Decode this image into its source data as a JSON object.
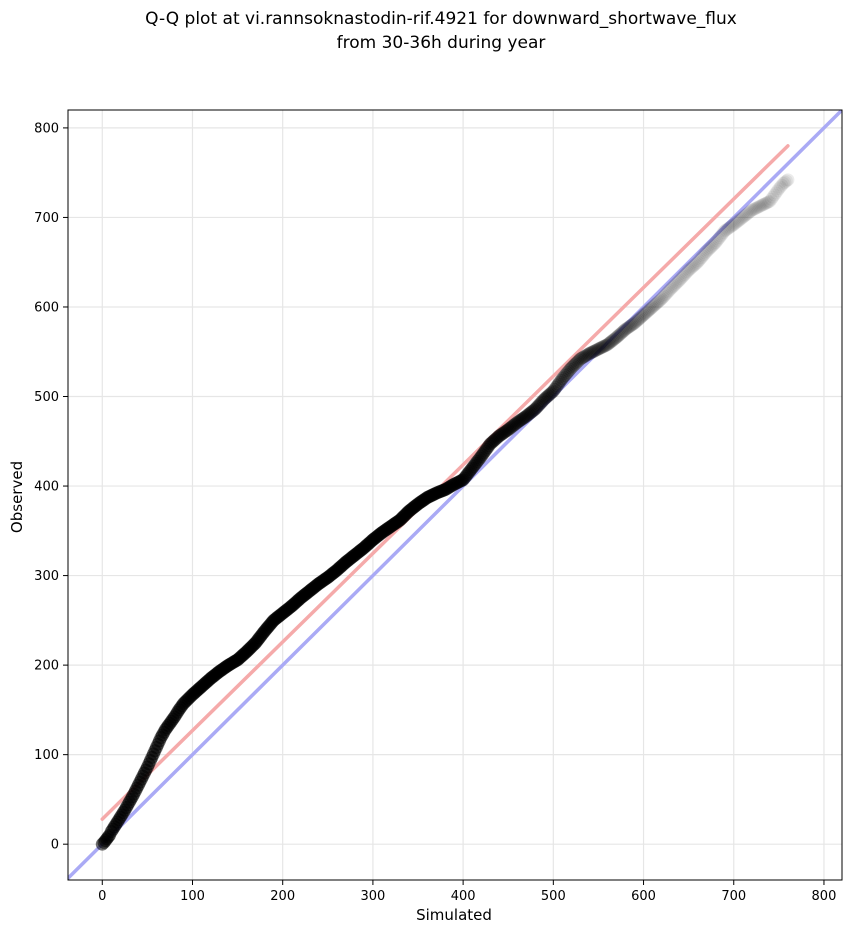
{
  "chart_data": {
    "type": "scatter",
    "title_lines": [
      "Q-Q plot at vi.rannsoknastodin-rif.4921 for downward_shortwave_flux",
      "from 30-36h during year"
    ],
    "xlabel": "Simulated",
    "ylabel": "Observed",
    "xlim": [
      -38,
      820
    ],
    "ylim": [
      -40,
      820
    ],
    "xticks": [
      0,
      100,
      200,
      300,
      400,
      500,
      600,
      700,
      800
    ],
    "yticks": [
      0,
      100,
      200,
      300,
      400,
      500,
      600,
      700,
      800
    ],
    "grid": true,
    "colors": {
      "points": "#000000",
      "identity_line": "#aaaaf5",
      "fit_line": "#f5aaaa",
      "axes": "#000000",
      "grid": "#e6e6e6"
    },
    "reference_lines": [
      {
        "kind": "identity",
        "points": [
          [
            -38,
            -38
          ],
          [
            820,
            820
          ]
        ]
      },
      {
        "kind": "fit",
        "points": [
          [
            0,
            28
          ],
          [
            760,
            780
          ]
        ]
      }
    ],
    "quantiles": {
      "x": [
        0,
        2,
        5,
        8,
        10,
        15,
        20,
        25,
        30,
        35,
        40,
        45,
        50,
        55,
        60,
        65,
        70,
        75,
        80,
        85,
        90,
        95,
        100,
        110,
        120,
        130,
        140,
        150,
        160,
        170,
        180,
        190,
        200,
        210,
        220,
        230,
        240,
        250,
        260,
        270,
        280,
        290,
        300,
        310,
        320,
        330,
        340,
        350,
        360,
        370,
        380,
        390,
        400,
        410,
        420,
        430,
        440,
        450,
        460,
        470,
        480,
        490,
        500,
        510,
        520,
        530,
        540,
        550,
        560,
        570,
        580,
        590,
        600,
        610,
        620,
        630,
        640,
        650,
        660,
        670,
        680,
        690,
        700,
        710,
        720,
        730,
        740,
        745,
        750,
        755,
        760
      ],
      "y": [
        0,
        2,
        6,
        10,
        14,
        22,
        30,
        38,
        47,
        56,
        66,
        76,
        86,
        97,
        108,
        119,
        128,
        135,
        142,
        150,
        157,
        162,
        167,
        176,
        185,
        193,
        200,
        206,
        215,
        225,
        238,
        250,
        258,
        266,
        275,
        283,
        291,
        298,
        306,
        315,
        323,
        331,
        340,
        348,
        355,
        362,
        372,
        380,
        387,
        392,
        396,
        402,
        407,
        420,
        433,
        447,
        456,
        463,
        471,
        478,
        486,
        497,
        506,
        520,
        532,
        542,
        548,
        553,
        558,
        566,
        575,
        582,
        591,
        600,
        609,
        620,
        630,
        641,
        650,
        662,
        672,
        685,
        692,
        700,
        708,
        713,
        718,
        725,
        732,
        738,
        742
      ]
    }
  }
}
